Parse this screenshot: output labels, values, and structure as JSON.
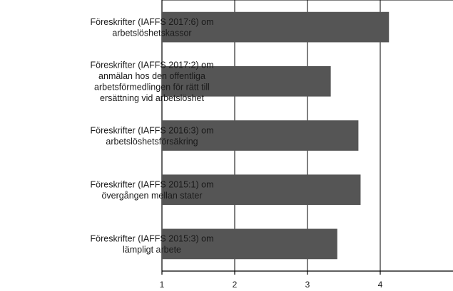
{
  "chart_data": {
    "type": "bar",
    "orientation": "horizontal",
    "categories": [
      [
        "Föreskrifter (IAFFS 2017:6) om",
        "arbetslöshetskassor"
      ],
      [
        "Föreskrifter (IAFFS 2017:2) om",
        "anmälan hos den offentliga",
        "arbetsförmedlingen för rätt till",
        "ersättning vid arbetslöshet"
      ],
      [
        "Föreskrifter (IAFFS 2016:3) om",
        "arbetslöshetsförsäkring"
      ],
      [
        "Föreskrifter (IAFFS 2015:1) om",
        "övergången mellan stater"
      ],
      [
        "Föreskrifter (IAFFS 2015:3) om",
        "lämpligt arbete"
      ]
    ],
    "values": [
      4.12,
      3.32,
      3.7,
      3.73,
      3.41
    ],
    "title": "",
    "xlabel": "",
    "ylabel": "",
    "xlim": [
      1,
      5
    ],
    "xticks": [
      "1",
      "2",
      "3",
      "4"
    ],
    "grid": true,
    "bar_color": "#555555"
  }
}
